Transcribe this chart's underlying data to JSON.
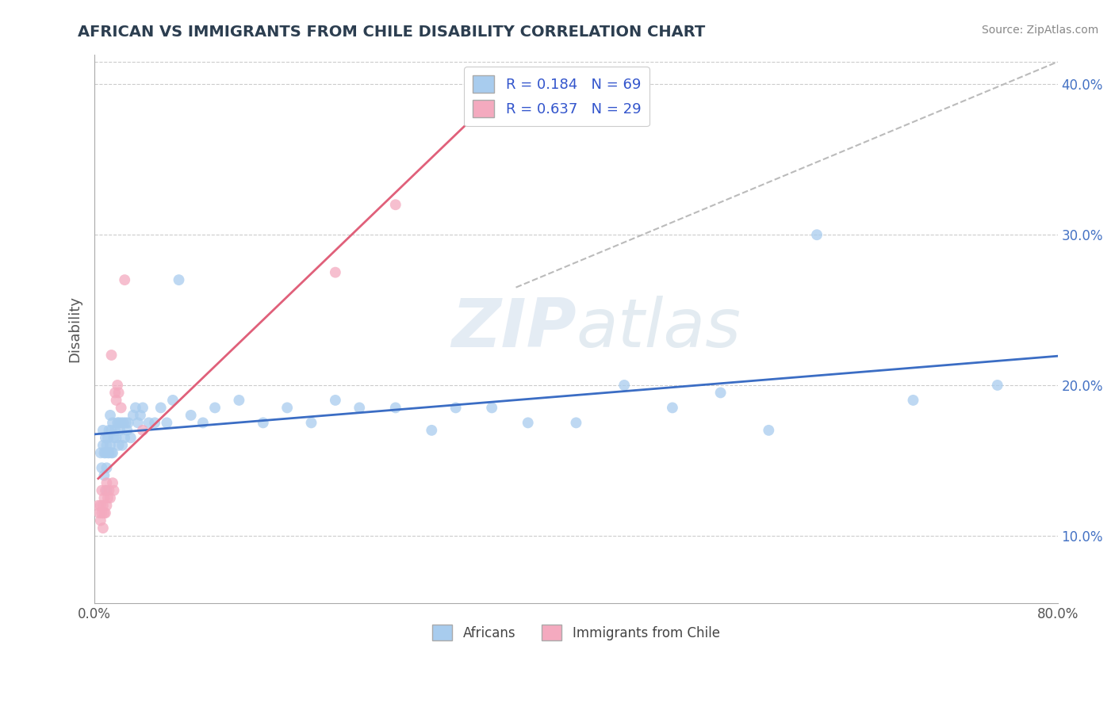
{
  "title": "AFRICAN VS IMMIGRANTS FROM CHILE DISABILITY CORRELATION CHART",
  "source": "Source: ZipAtlas.com",
  "ylabel": "Disability",
  "watermark": "ZIPatlas",
  "xlim": [
    0.0,
    0.8
  ],
  "ylim": [
    0.055,
    0.42
  ],
  "xtick_positions": [
    0.0,
    0.1,
    0.2,
    0.3,
    0.4,
    0.5,
    0.6,
    0.7,
    0.8
  ],
  "xtick_labels": [
    "0.0%",
    "",
    "",
    "",
    "",
    "",
    "",
    "",
    "80.0%"
  ],
  "ytick_positions": [
    0.1,
    0.2,
    0.3,
    0.4
  ],
  "ytick_labels": [
    "10.0%",
    "20.0%",
    "30.0%",
    "40.0%"
  ],
  "africans_color": "#A8CCEE",
  "chile_color": "#F4AABF",
  "africans_line_color": "#3B6DC4",
  "chile_line_color": "#E0607A",
  "dash_line_color": "#BBBBBB",
  "R_africans": 0.184,
  "N_africans": 69,
  "R_chile": 0.637,
  "N_chile": 29,
  "legend_R_N_color": "#3355CC",
  "africans_x": [
    0.005,
    0.006,
    0.007,
    0.007,
    0.008,
    0.008,
    0.009,
    0.009,
    0.01,
    0.01,
    0.01,
    0.011,
    0.011,
    0.012,
    0.012,
    0.013,
    0.013,
    0.014,
    0.014,
    0.015,
    0.015,
    0.016,
    0.017,
    0.018,
    0.019,
    0.02,
    0.02,
    0.021,
    0.022,
    0.023,
    0.024,
    0.025,
    0.026,
    0.027,
    0.028,
    0.03,
    0.032,
    0.034,
    0.036,
    0.038,
    0.04,
    0.045,
    0.05,
    0.055,
    0.06,
    0.065,
    0.07,
    0.08,
    0.09,
    0.1,
    0.12,
    0.14,
    0.16,
    0.18,
    0.2,
    0.22,
    0.25,
    0.28,
    0.3,
    0.33,
    0.36,
    0.4,
    0.44,
    0.48,
    0.52,
    0.56,
    0.6,
    0.68,
    0.75
  ],
  "africans_y": [
    0.155,
    0.145,
    0.16,
    0.17,
    0.14,
    0.155,
    0.165,
    0.155,
    0.13,
    0.145,
    0.16,
    0.155,
    0.165,
    0.155,
    0.17,
    0.16,
    0.18,
    0.155,
    0.17,
    0.155,
    0.175,
    0.165,
    0.17,
    0.165,
    0.175,
    0.16,
    0.175,
    0.17,
    0.175,
    0.16,
    0.175,
    0.165,
    0.175,
    0.17,
    0.175,
    0.165,
    0.18,
    0.185,
    0.175,
    0.18,
    0.185,
    0.175,
    0.175,
    0.185,
    0.175,
    0.19,
    0.27,
    0.18,
    0.175,
    0.185,
    0.19,
    0.175,
    0.185,
    0.175,
    0.19,
    0.185,
    0.185,
    0.17,
    0.185,
    0.185,
    0.175,
    0.175,
    0.2,
    0.185,
    0.195,
    0.17,
    0.3,
    0.19,
    0.2
  ],
  "chile_x": [
    0.003,
    0.004,
    0.005,
    0.005,
    0.006,
    0.006,
    0.007,
    0.007,
    0.008,
    0.008,
    0.009,
    0.009,
    0.01,
    0.01,
    0.011,
    0.012,
    0.013,
    0.014,
    0.015,
    0.016,
    0.017,
    0.018,
    0.019,
    0.02,
    0.022,
    0.025,
    0.04,
    0.2,
    0.25
  ],
  "chile_y": [
    0.12,
    0.115,
    0.11,
    0.12,
    0.115,
    0.13,
    0.105,
    0.12,
    0.115,
    0.125,
    0.115,
    0.13,
    0.12,
    0.135,
    0.125,
    0.13,
    0.125,
    0.22,
    0.135,
    0.13,
    0.195,
    0.19,
    0.2,
    0.195,
    0.185,
    0.27,
    0.17,
    0.275,
    0.32
  ],
  "chile_line_x_start": 0.003,
  "chile_line_x_end": 0.35,
  "dash_line_x_start": 0.35,
  "dash_line_x_end": 0.8,
  "dash_line_y_start": 0.265,
  "dash_line_y_end": 0.415
}
